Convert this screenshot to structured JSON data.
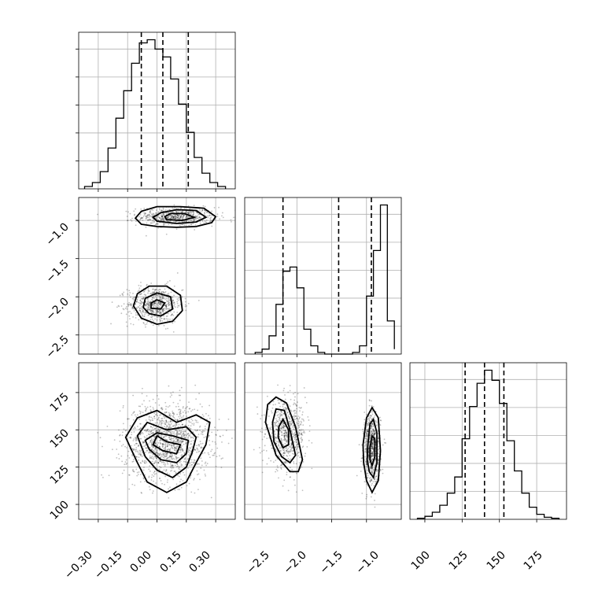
{
  "chart_data": {
    "type": "corner",
    "grid": true,
    "params": [
      {
        "xlim": [
          -0.4,
          0.4
        ],
        "hist_bins": [
          -0.37,
          -0.33,
          -0.29,
          -0.25,
          -0.21,
          -0.17,
          -0.13,
          -0.09,
          -0.05,
          -0.01,
          0.03,
          0.07,
          0.11,
          0.15,
          0.19,
          0.23,
          0.27,
          0.31,
          0.35
        ],
        "hist_counts": [
          3,
          8,
          22,
          52,
          90,
          125,
          160,
          186,
          190,
          178,
          168,
          140,
          108,
          72,
          40,
          20,
          8,
          3
        ],
        "quantiles": [
          -0.08,
          0.03,
          0.16
        ]
      },
      {
        "xlim": [
          -2.75,
          -0.5
        ],
        "hist_bins": [
          -2.6,
          -2.5,
          -2.4,
          -2.3,
          -2.2,
          -2.1,
          -2.0,
          -1.9,
          -1.8,
          -1.7,
          -1.6,
          -1.5,
          -1.4,
          -1.3,
          -1.2,
          -1.1,
          -1.0,
          -0.9,
          -0.8,
          -0.7,
          -0.6
        ],
        "hist_counts": [
          2,
          6,
          22,
          60,
          100,
          105,
          80,
          30,
          10,
          2,
          0,
          0,
          0,
          0,
          2,
          10,
          70,
          125,
          180,
          40,
          6
        ],
        "quantiles": [
          -2.2,
          -1.4,
          -0.93
        ]
      },
      {
        "xlim": [
          90,
          195
        ],
        "hist_bins": [
          95,
          100,
          105,
          110,
          115,
          120,
          125,
          130,
          135,
          140,
          145,
          150,
          155,
          160,
          165,
          170,
          175,
          180,
          185,
          190
        ],
        "hist_counts": [
          1,
          3,
          7,
          14,
          26,
          42,
          80,
          112,
          135,
          148,
          138,
          115,
          78,
          48,
          26,
          12,
          5,
          2,
          1
        ],
        "quantiles": [
          127,
          140,
          153
        ]
      }
    ],
    "scatter_panels": [
      {
        "row": 1,
        "col": 0,
        "ylim": [
          -2.75,
          -0.7
        ],
        "clusters": [
          {
            "center": [
              0.1,
              -0.95
            ],
            "spread": [
              0.1,
              0.06
            ],
            "n": 650
          },
          {
            "center": [
              -0.01,
              -2.1
            ],
            "spread": [
              0.07,
              0.12
            ],
            "n": 650
          }
        ],
        "contours": [
          [
            [
              -0.08,
              -1.05
            ],
            [
              0.0,
              -1.08
            ],
            [
              0.1,
              -1.09
            ],
            [
              0.2,
              -1.08
            ],
            [
              0.28,
              -1.03
            ],
            [
              0.3,
              -0.95
            ],
            [
              0.24,
              -0.84
            ],
            [
              0.12,
              -0.82
            ],
            [
              0.0,
              -0.82
            ],
            [
              -0.08,
              -0.88
            ],
            [
              -0.11,
              -0.97
            ]
          ],
          [
            [
              0.0,
              -1.01
            ],
            [
              0.1,
              -1.04
            ],
            [
              0.2,
              -1.02
            ],
            [
              0.25,
              -0.96
            ],
            [
              0.2,
              -0.87
            ],
            [
              0.1,
              -0.86
            ],
            [
              0.02,
              -0.9
            ],
            [
              -0.02,
              -0.96
            ]
          ],
          [
            [
              0.05,
              -0.99
            ],
            [
              0.13,
              -1.0
            ],
            [
              0.19,
              -0.96
            ],
            [
              0.14,
              -0.91
            ],
            [
              0.07,
              -0.91
            ],
            [
              0.04,
              -0.95
            ]
          ],
          [
            [
              -0.08,
              -2.28
            ],
            [
              0.0,
              -2.36
            ],
            [
              0.08,
              -2.32
            ],
            [
              0.13,
              -2.18
            ],
            [
              0.12,
              -1.98
            ],
            [
              0.05,
              -1.86
            ],
            [
              -0.04,
              -1.86
            ],
            [
              -0.1,
              -1.96
            ],
            [
              -0.12,
              -2.12
            ]
          ],
          [
            [
              -0.04,
              -2.22
            ],
            [
              0.02,
              -2.25
            ],
            [
              0.08,
              -2.16
            ],
            [
              0.07,
              -2.0
            ],
            [
              0.0,
              -1.95
            ],
            [
              -0.06,
              -2.02
            ],
            [
              -0.07,
              -2.14
            ]
          ],
          [
            [
              -0.03,
              -2.15
            ],
            [
              0.02,
              -2.16
            ],
            [
              0.04,
              -2.08
            ],
            [
              0.0,
              -2.04
            ],
            [
              -0.03,
              -2.08
            ]
          ]
        ]
      },
      {
        "row": 2,
        "col": 0,
        "ylim": [
          90,
          195
        ],
        "clusters": [
          {
            "center": [
              0.05,
              142
            ],
            "spread": [
              0.11,
              13
            ],
            "n": 1400
          }
        ],
        "contours": [
          [
            [
              -0.1,
              128
            ],
            [
              -0.05,
              115
            ],
            [
              0.05,
              108
            ],
            [
              0.15,
              115
            ],
            [
              0.2,
              128
            ],
            [
              0.25,
              140
            ],
            [
              0.27,
              155
            ],
            [
              0.2,
              160
            ],
            [
              0.1,
              155
            ],
            [
              0.0,
              163
            ],
            [
              -0.1,
              158
            ],
            [
              -0.16,
              145
            ]
          ],
          [
            [
              -0.06,
              132
            ],
            [
              0.0,
              123
            ],
            [
              0.08,
              118
            ],
            [
              0.15,
              125
            ],
            [
              0.18,
              135
            ],
            [
              0.2,
              145
            ],
            [
              0.15,
              152
            ],
            [
              0.05,
              150
            ],
            [
              -0.05,
              155
            ],
            [
              -0.1,
              146
            ]
          ],
          [
            [
              -0.04,
              137
            ],
            [
              0.02,
              130
            ],
            [
              0.1,
              128
            ],
            [
              0.15,
              134
            ],
            [
              0.16,
              143
            ],
            [
              0.08,
              146
            ],
            [
              0.0,
              148
            ],
            [
              -0.06,
              143
            ]
          ],
          [
            [
              -0.02,
              140
            ],
            [
              0.03,
              136
            ],
            [
              0.1,
              134
            ],
            [
              0.12,
              140
            ],
            [
              0.05,
              142
            ],
            [
              0.0,
              146
            ]
          ]
        ]
      },
      {
        "row": 2,
        "col": 1,
        "ylim": [
          90,
          195
        ],
        "clusters": [
          {
            "center": [
              -2.15,
              147
            ],
            "spread": [
              0.14,
              11
            ],
            "n": 700
          },
          {
            "center": [
              -0.92,
              137
            ],
            "spread": [
              0.06,
              12
            ],
            "n": 700
          }
        ],
        "contours": [
          [
            [
              -2.45,
              155
            ],
            [
              -2.42,
              167
            ],
            [
              -2.3,
              172
            ],
            [
              -2.15,
              168
            ],
            [
              -2.02,
              152
            ],
            [
              -1.92,
              130
            ],
            [
              -1.98,
              122
            ],
            [
              -2.1,
              122
            ],
            [
              -2.3,
              133
            ]
          ],
          [
            [
              -2.35,
              155
            ],
            [
              -2.3,
              164
            ],
            [
              -2.18,
              163
            ],
            [
              -2.1,
              150
            ],
            [
              -2.02,
              133
            ],
            [
              -2.1,
              128
            ],
            [
              -2.22,
              132
            ],
            [
              -2.33,
              142
            ]
          ],
          [
            [
              -2.26,
              152
            ],
            [
              -2.2,
              157
            ],
            [
              -2.12,
              150
            ],
            [
              -2.12,
              140
            ],
            [
              -2.2,
              138
            ],
            [
              -2.27,
              145
            ]
          ],
          [
            [
              -1.05,
              140
            ],
            [
              -1.0,
              158
            ],
            [
              -0.92,
              165
            ],
            [
              -0.83,
              158
            ],
            [
              -0.8,
              136
            ],
            [
              -0.83,
              116
            ],
            [
              -0.92,
              108
            ],
            [
              -1.0,
              116
            ],
            [
              -1.04,
              128
            ]
          ],
          [
            [
              -0.98,
              140
            ],
            [
              -0.95,
              154
            ],
            [
              -0.9,
              157
            ],
            [
              -0.85,
              148
            ],
            [
              -0.85,
              128
            ],
            [
              -0.9,
              118
            ],
            [
              -0.96,
              122
            ],
            [
              -0.99,
              130
            ]
          ],
          [
            [
              -0.95,
              138
            ],
            [
              -0.92,
              146
            ],
            [
              -0.88,
              144
            ],
            [
              -0.88,
              132
            ],
            [
              -0.92,
              126
            ],
            [
              -0.95,
              130
            ]
          ]
        ]
      }
    ]
  },
  "axes": {
    "col0_ticks": [
      "−0.30",
      "−0.15",
      "0.00",
      "0.15",
      "0.30"
    ],
    "col1_ticks": [
      "−2.5",
      "−2.0",
      "−1.5",
      "−1.0"
    ],
    "col2_ticks": [
      "100",
      "125",
      "150",
      "175"
    ],
    "row1_ticks": [
      "−1.0",
      "−1.5",
      "−2.0",
      "−2.5"
    ],
    "row2_ticks": [
      "175",
      "150",
      "125",
      "100"
    ]
  }
}
